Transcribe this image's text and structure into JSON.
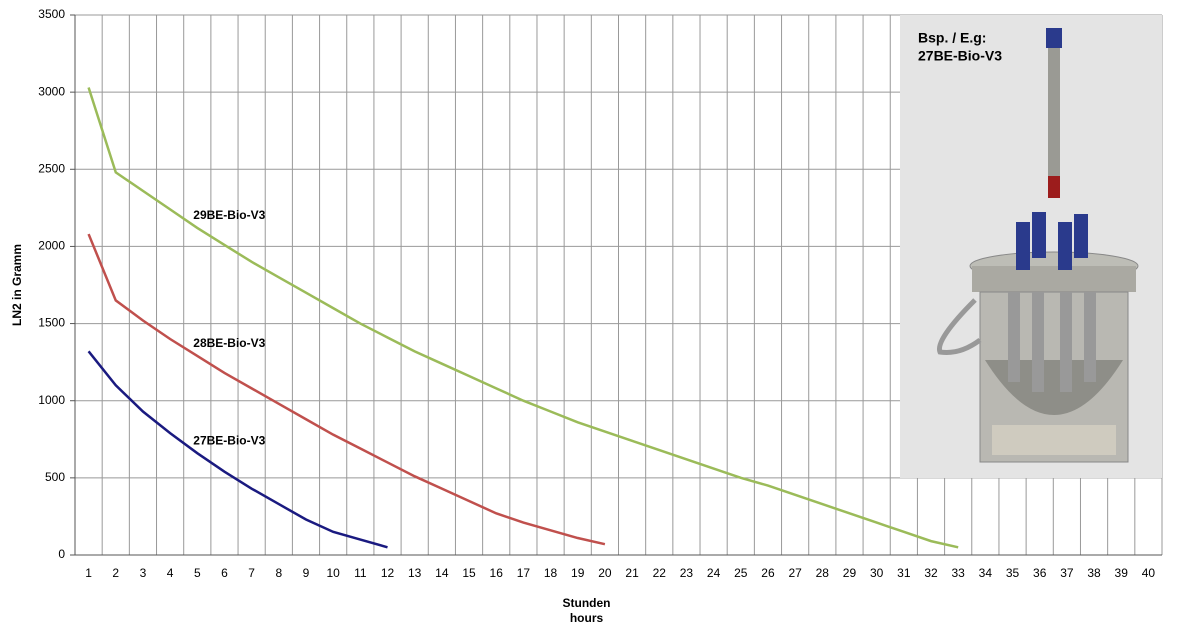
{
  "chart_data": {
    "type": "line",
    "y_label": "LN2 in Gramm",
    "x_label": [
      "Stunden",
      "hours"
    ],
    "categories": [
      1,
      2,
      3,
      4,
      5,
      6,
      7,
      8,
      9,
      10,
      11,
      12,
      13,
      14,
      15,
      16,
      17,
      18,
      19,
      20,
      21,
      22,
      23,
      24,
      25,
      26,
      27,
      28,
      29,
      30,
      31,
      32,
      33,
      34,
      35,
      36,
      37,
      38,
      39,
      40
    ],
    "ylim": [
      0,
      3500
    ],
    "yticks": [
      0,
      500,
      1000,
      1500,
      2000,
      2500,
      3000,
      3500
    ],
    "grid": true,
    "series": [
      {
        "name": "29BE-Bio-V3",
        "color": "#9bbb59",
        "values": [
          3030,
          2480,
          2360,
          2240,
          2120,
          2010,
          1900,
          1800,
          1700,
          1600,
          1500,
          1410,
          1320,
          1240,
          1160,
          1080,
          1000,
          930,
          860,
          800,
          740,
          680,
          620,
          560,
          500,
          450,
          390,
          330,
          270,
          210,
          150,
          90,
          50,
          null,
          null,
          null,
          null,
          null,
          null,
          null
        ]
      },
      {
        "name": "28BE-Bio-V3",
        "color": "#c0504d",
        "values": [
          2080,
          1650,
          1520,
          1400,
          1290,
          1180,
          1080,
          980,
          880,
          780,
          690,
          600,
          510,
          430,
          350,
          270,
          210,
          160,
          110,
          70,
          null,
          null,
          null,
          null,
          null,
          null,
          null,
          null,
          null,
          null,
          null,
          null,
          null,
          null,
          null,
          null,
          null,
          null,
          null,
          null
        ]
      },
      {
        "name": "27BE-Bio-V3",
        "color": "#1a1a80",
        "values": [
          1320,
          1100,
          930,
          790,
          660,
          540,
          430,
          330,
          230,
          150,
          100,
          50,
          null,
          null,
          null,
          null,
          null,
          null,
          null,
          null,
          null,
          null,
          null,
          null,
          null,
          null,
          null,
          null,
          null,
          null,
          null,
          null,
          null,
          null,
          null,
          null,
          null,
          null,
          null,
          null
        ]
      }
    ]
  },
  "inset": {
    "lines": [
      "Bsp. / E.g:",
      "27BE-Bio-V3"
    ]
  }
}
